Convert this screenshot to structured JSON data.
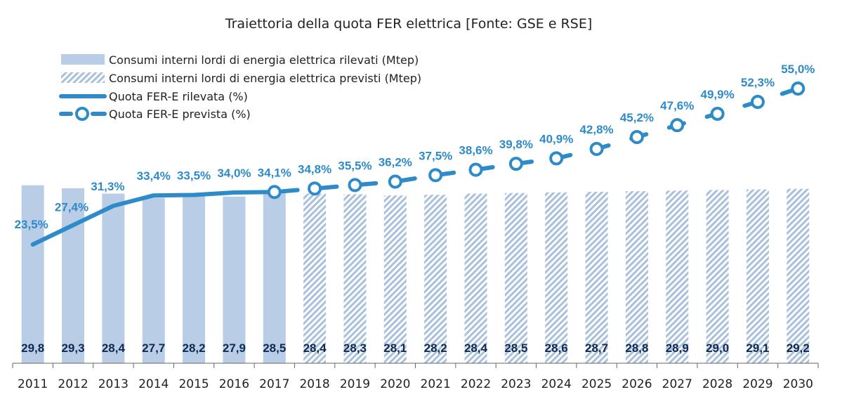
{
  "chart_data": {
    "type": "bar",
    "title": "Traiettoria della quota FER elettrica [Fonte: GSE e RSE]",
    "categories": [
      "2011",
      "2012",
      "2013",
      "2014",
      "2015",
      "2016",
      "2017",
      "2018",
      "2019",
      "2020",
      "2021",
      "2022",
      "2023",
      "2024",
      "2025",
      "2026",
      "2027",
      "2028",
      "2029",
      "2030"
    ],
    "bar_series": [
      {
        "name": "Consumi interni lordi di energia elettrica rilevati (Mtep)",
        "style": "solid",
        "values": [
          29.8,
          29.3,
          28.4,
          27.7,
          28.2,
          27.9,
          28.5,
          null,
          null,
          null,
          null,
          null,
          null,
          null,
          null,
          null,
          null,
          null,
          null,
          null
        ],
        "labels": [
          "29,8",
          "29,3",
          "28,4",
          "27,7",
          "28,2",
          "27,9",
          "28,5",
          "",
          "",
          "",
          "",
          "",
          "",
          "",
          "",
          "",
          "",
          "",
          "",
          ""
        ]
      },
      {
        "name": "Consumi interni lordi di energia elettrica previsti (Mtep)",
        "style": "hatched",
        "values": [
          null,
          null,
          null,
          null,
          null,
          null,
          null,
          28.4,
          28.3,
          28.1,
          28.2,
          28.4,
          28.5,
          28.6,
          28.7,
          28.8,
          28.9,
          29.0,
          29.1,
          29.2
        ],
        "labels": [
          "",
          "",
          "",
          "",
          "",
          "",
          "",
          "28,4",
          "28,3",
          "28,1",
          "28,2",
          "28,4",
          "28,5",
          "28,6",
          "28,7",
          "28,8",
          "28,9",
          "29,0",
          "29,1",
          "29,2"
        ]
      }
    ],
    "line_series": [
      {
        "name": "Quota FER-E rilevata (%)",
        "style": "solid",
        "values": [
          23.5,
          27.4,
          31.3,
          33.4,
          33.5,
          34.0,
          34.1,
          null,
          null,
          null,
          null,
          null,
          null,
          null,
          null,
          null,
          null,
          null,
          null,
          null
        ],
        "labels": [
          "23,5%",
          "27,4%",
          "31,3%",
          "33,4%",
          "33,5%",
          "34,0%",
          "34,1%",
          "",
          "",
          "",
          "",
          "",
          "",
          "",
          "",
          "",
          "",
          "",
          "",
          ""
        ]
      },
      {
        "name": "Quota FER-E prevista (%)",
        "style": "dashed-markers",
        "values": [
          null,
          null,
          null,
          null,
          null,
          null,
          34.1,
          34.8,
          35.5,
          36.2,
          37.5,
          38.6,
          39.8,
          40.9,
          42.8,
          45.2,
          47.6,
          49.9,
          52.3,
          55.0
        ],
        "labels": [
          "",
          "",
          "",
          "",
          "",
          "",
          "",
          "34,8%",
          "35,5%",
          "36,2%",
          "37,5%",
          "38,6%",
          "39,8%",
          "40,9%",
          "42,8%",
          "45,2%",
          "47,6%",
          "49,9%",
          "52,3%",
          "55,0%"
        ]
      }
    ],
    "bar_axis_ylim": [
      0,
      35
    ],
    "line_axis_ylim": [
      0,
      60
    ],
    "legend": "top-left",
    "grid": false,
    "colors": {
      "bar_fill": "#b9cde6",
      "bar_hatch": "#a8c0dc",
      "line": "#2e8bc9",
      "pct_label": "#2e8bc9",
      "bar_label": "#0f2a52",
      "axis": "#666666"
    }
  }
}
